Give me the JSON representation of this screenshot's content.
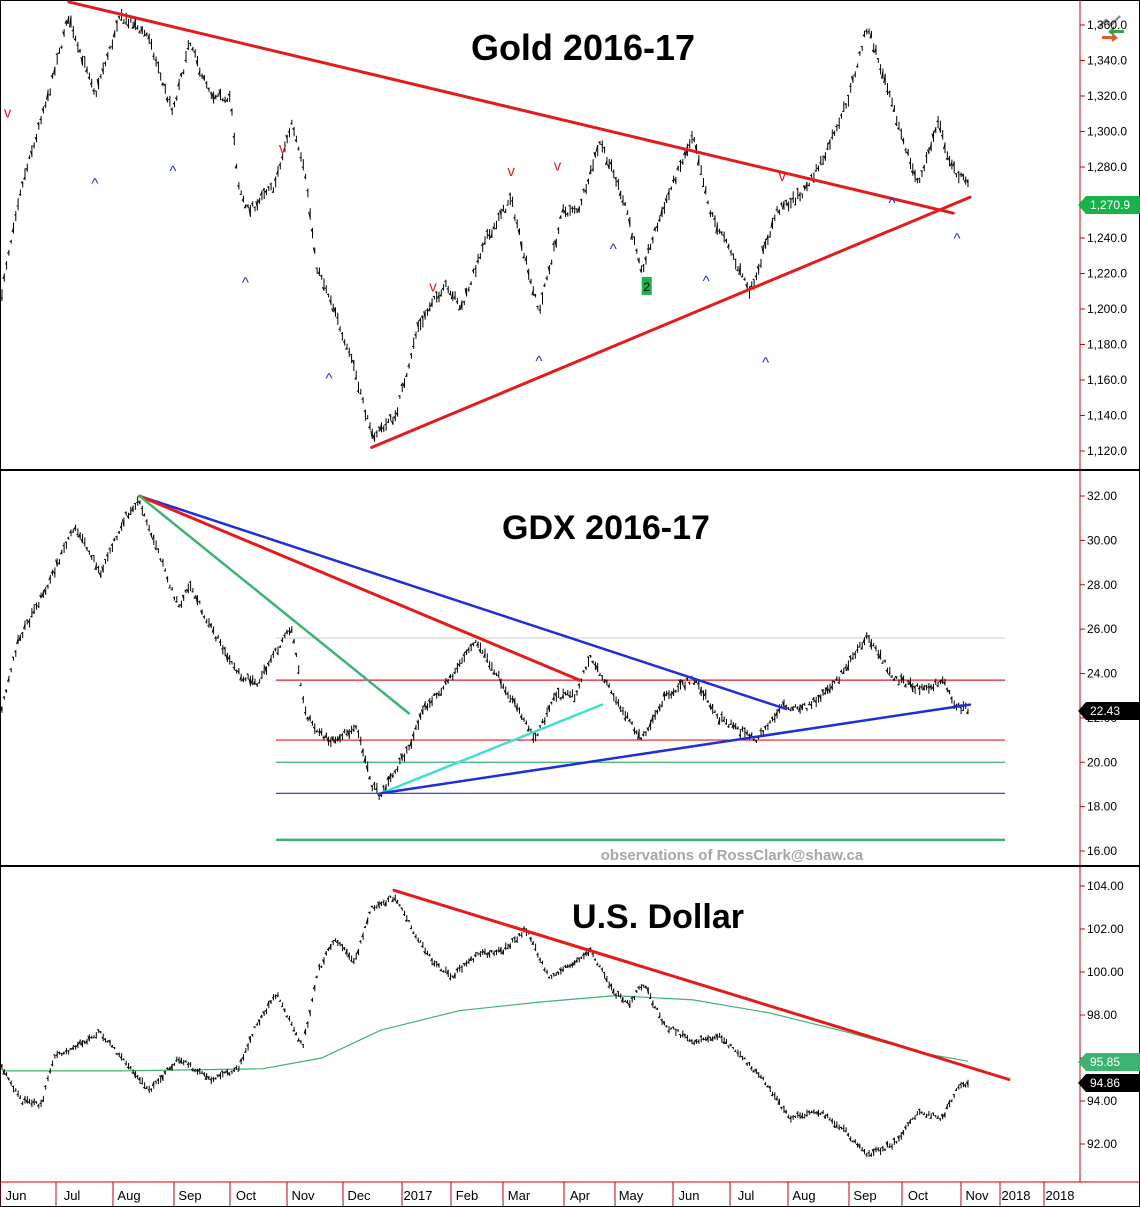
{
  "app_icon": "chart-toolbar-icon",
  "colors": {
    "axis": "#cc0000",
    "bars": "#000000",
    "red_line": "#e41b1b",
    "blue_line": "#1f2fd6",
    "green_line": "#3cb371",
    "cyan_line": "#40e0d0",
    "grey_line": "#c8c8c8",
    "ma_line": "#3cb371",
    "badge_green": "#18b24a",
    "badge_black": "#000000",
    "marker_red": "#e41b1b",
    "marker_blue": "#1f2fd6"
  },
  "x_axis": {
    "labels": [
      "Jun",
      "Jul",
      "Aug",
      "Sep",
      "Oct",
      "Nov",
      "Dec",
      "2017",
      "Feb",
      "Mar",
      "Apr",
      "May",
      "Jun",
      "Jul",
      "Aug",
      "Sep",
      "Oct",
      "Nov",
      "2018",
      "2018"
    ]
  },
  "watermark": "observations of RossClark@shaw.ca",
  "chart_data": [
    {
      "type": "line",
      "title": "Gold 2016-17",
      "ylim": [
        1110,
        1375
      ],
      "yticks": [
        "1,120.0",
        "1,140.0",
        "1,160.0",
        "1,180.0",
        "1,200.0",
        "1,220.0",
        "1,240.0",
        "1,260.0",
        "1,280.0",
        "1,300.0",
        "1,320.0",
        "1,340.0",
        "1,360.0"
      ],
      "last_value_label": "1,270.9",
      "price_path": [
        [
          "2016-05-30",
          1210
        ],
        [
          "2016-06-10",
          1270
        ],
        [
          "2016-06-24",
          1320
        ],
        [
          "2016-07-05",
          1365
        ],
        [
          "2016-07-19",
          1320
        ],
        [
          "2016-08-02",
          1365
        ],
        [
          "2016-08-16",
          1355
        ],
        [
          "2016-08-30",
          1310
        ],
        [
          "2016-09-08",
          1350
        ],
        [
          "2016-09-20",
          1318
        ],
        [
          "2016-09-30",
          1320
        ],
        [
          "2016-10-04",
          1270
        ],
        [
          "2016-10-10",
          1255
        ],
        [
          "2016-10-24",
          1270
        ],
        [
          "2016-11-02",
          1305
        ],
        [
          "2016-11-09",
          1280
        ],
        [
          "2016-11-15",
          1225
        ],
        [
          "2016-11-28",
          1190
        ],
        [
          "2016-12-05",
          1170
        ],
        [
          "2016-12-15",
          1128
        ],
        [
          "2016-12-28",
          1140
        ],
        [
          "2017-01-09",
          1190
        ],
        [
          "2017-01-24",
          1215
        ],
        [
          "2017-02-01",
          1200
        ],
        [
          "2017-02-15",
          1240
        ],
        [
          "2017-02-28",
          1262
        ],
        [
          "2017-03-15",
          1198
        ],
        [
          "2017-03-28",
          1255
        ],
        [
          "2017-04-05",
          1255
        ],
        [
          "2017-04-17",
          1295
        ],
        [
          "2017-05-01",
          1258
        ],
        [
          "2017-05-09",
          1220
        ],
        [
          "2017-05-22",
          1260
        ],
        [
          "2017-06-06",
          1297
        ],
        [
          "2017-06-15",
          1255
        ],
        [
          "2017-07-07",
          1210
        ],
        [
          "2017-07-21",
          1255
        ],
        [
          "2017-08-04",
          1265
        ],
        [
          "2017-08-15",
          1285
        ],
        [
          "2017-08-29",
          1320
        ],
        [
          "2017-09-08",
          1360
        ],
        [
          "2017-09-18",
          1325
        ],
        [
          "2017-10-05",
          1270
        ],
        [
          "2017-10-16",
          1305
        ],
        [
          "2017-10-23",
          1280
        ],
        [
          "2017-11-01",
          1270
        ]
      ],
      "trendlines": [
        {
          "name": "resistance",
          "color": "red",
          "from": [
            "2016-07-05",
            1373
          ],
          "to": [
            "2017-10-24",
            1254
          ]
        },
        {
          "name": "support",
          "color": "red",
          "from": [
            "2016-12-15",
            1122
          ],
          "to": [
            "2017-11-02",
            1263
          ]
        }
      ],
      "markers": [
        {
          "text": "v",
          "color": "red",
          "at": [
            "2016-06-02",
            1308
          ]
        },
        {
          "text": "v",
          "color": "red",
          "at": [
            "2016-10-28",
            1288
          ]
        },
        {
          "text": "v",
          "color": "red",
          "at": [
            "2017-01-17",
            1210
          ]
        },
        {
          "text": "v",
          "color": "red",
          "at": [
            "2017-02-28",
            1275
          ]
        },
        {
          "text": "v",
          "color": "red",
          "at": [
            "2017-03-25",
            1278
          ]
        },
        {
          "text": "v",
          "color": "red",
          "at": [
            "2017-07-24",
            1272
          ]
        },
        {
          "text": "v",
          "color": "red",
          "at": [
            "2017-09-05",
            1383
          ]
        },
        {
          "text": "^",
          "color": "blue",
          "at": [
            "2016-07-19",
            1268
          ]
        },
        {
          "text": "^",
          "color": "blue",
          "at": [
            "2016-08-30",
            1275
          ]
        },
        {
          "text": "^",
          "color": "blue",
          "at": [
            "2016-10-08",
            1212
          ]
        },
        {
          "text": "^",
          "color": "blue",
          "at": [
            "2016-11-22",
            1158
          ]
        },
        {
          "text": "^",
          "color": "blue",
          "at": [
            "2017-03-15",
            1168
          ]
        },
        {
          "text": "^",
          "color": "blue",
          "at": [
            "2017-04-24",
            1231
          ]
        },
        {
          "text": "^",
          "color": "blue",
          "at": [
            "2017-06-13",
            1213
          ]
        },
        {
          "text": "^",
          "color": "blue",
          "at": [
            "2017-07-15",
            1167
          ]
        },
        {
          "text": "^",
          "color": "blue",
          "at": [
            "2017-09-21",
            1257
          ]
        },
        {
          "text": "^",
          "color": "blue",
          "at": [
            "2017-10-26",
            1237
          ]
        }
      ],
      "badge": {
        "text": "2",
        "at": [
          "2017-05-12",
          1213
        ]
      }
    },
    {
      "type": "line",
      "title": "GDX 2016-17",
      "ylim": [
        15.3,
        32.6
      ],
      "yticks": [
        "16.00",
        "18.00",
        "20.00",
        "22.00",
        "24.00",
        "26.00",
        "28.00",
        "30.00",
        "32.00"
      ],
      "last_value_label": "22.43",
      "price_path": [
        [
          "2016-05-30",
          22.5
        ],
        [
          "2016-06-08",
          25.5
        ],
        [
          "2016-06-24",
          28.0
        ],
        [
          "2016-07-08",
          30.7
        ],
        [
          "2016-07-22",
          28.5
        ],
        [
          "2016-08-04",
          31.0
        ],
        [
          "2016-08-12",
          31.8
        ],
        [
          "2016-08-24",
          29.0
        ],
        [
          "2016-09-02",
          27.0
        ],
        [
          "2016-09-08",
          28.0
        ],
        [
          "2016-09-20",
          26.0
        ],
        [
          "2016-10-04",
          24.0
        ],
        [
          "2016-10-14",
          23.5
        ],
        [
          "2016-10-28",
          25.5
        ],
        [
          "2016-11-02",
          26.0
        ],
        [
          "2016-11-10",
          22.0
        ],
        [
          "2016-11-22",
          21.0
        ],
        [
          "2016-12-07",
          21.5
        ],
        [
          "2016-12-15",
          19.0
        ],
        [
          "2016-12-20",
          18.5
        ],
        [
          "2017-01-03",
          20.5
        ],
        [
          "2017-01-13",
          22.5
        ],
        [
          "2017-01-24",
          23.5
        ],
        [
          "2017-02-09",
          25.5
        ],
        [
          "2017-02-24",
          23.5
        ],
        [
          "2017-03-13",
          21.0
        ],
        [
          "2017-03-24",
          23.0
        ],
        [
          "2017-04-04",
          23.0
        ],
        [
          "2017-04-12",
          24.8
        ],
        [
          "2017-04-24",
          23.0
        ],
        [
          "2017-05-09",
          21.0
        ],
        [
          "2017-05-22",
          23.0
        ],
        [
          "2017-06-06",
          23.8
        ],
        [
          "2017-06-20",
          22.0
        ],
        [
          "2017-07-10",
          21.0
        ],
        [
          "2017-07-24",
          22.5
        ],
        [
          "2017-08-07",
          22.5
        ],
        [
          "2017-08-21",
          23.5
        ],
        [
          "2017-09-08",
          25.7
        ],
        [
          "2017-09-22",
          23.8
        ],
        [
          "2017-10-09",
          23.2
        ],
        [
          "2017-10-18",
          23.8
        ],
        [
          "2017-10-25",
          22.5
        ],
        [
          "2017-11-01",
          22.43
        ]
      ],
      "trendlines": [
        {
          "name": "blue-resistance",
          "color": "blue",
          "from": [
            "2016-08-12",
            32.0
          ],
          "to": [
            "2017-07-26",
            22.4
          ]
        },
        {
          "name": "red-resistance",
          "color": "red",
          "from": [
            "2016-08-12",
            32.0
          ],
          "to": [
            "2017-04-06",
            23.7
          ]
        },
        {
          "name": "green-resistance",
          "color": "green",
          "from": [
            "2016-08-12",
            32.0
          ],
          "to": [
            "2017-01-04",
            22.2
          ]
        },
        {
          "name": "cyan-support",
          "color": "cyan",
          "from": [
            "2016-12-20",
            18.6
          ],
          "to": [
            "2017-04-18",
            22.6
          ]
        },
        {
          "name": "blue-support",
          "color": "blue",
          "from": [
            "2016-12-20",
            18.6
          ],
          "to": [
            "2017-11-02",
            22.6
          ]
        }
      ],
      "levels": [
        {
          "value": 25.6,
          "color": "grey"
        },
        {
          "value": 23.7,
          "color": "red"
        },
        {
          "value": 21.0,
          "color": "red"
        },
        {
          "value": 20.0,
          "color": "green"
        },
        {
          "value": 18.6,
          "color": "blue"
        },
        {
          "value": 16.5,
          "color": "green"
        }
      ]
    },
    {
      "type": "line",
      "title": "U.S. Dollar",
      "ylim": [
        90.3,
        104.5
      ],
      "yticks": [
        "92.00",
        "94.00",
        "96.00",
        "98.00",
        "100.00",
        "102.00",
        "104.00"
      ],
      "last_value_label": "94.86",
      "ma_value_label": "95.85",
      "price_path": [
        [
          "2016-05-30",
          95.5
        ],
        [
          "2016-06-10",
          94.0
        ],
        [
          "2016-06-20",
          93.8
        ],
        [
          "2016-06-27",
          96.0
        ],
        [
          "2016-07-08",
          96.5
        ],
        [
          "2016-07-22",
          97.2
        ],
        [
          "2016-08-05",
          95.7
        ],
        [
          "2016-08-18",
          94.5
        ],
        [
          "2016-09-02",
          96.0
        ],
        [
          "2016-09-20",
          95.0
        ],
        [
          "2016-10-04",
          95.5
        ],
        [
          "2016-10-14",
          97.5
        ],
        [
          "2016-10-25",
          99.0
        ],
        [
          "2016-11-08",
          96.5
        ],
        [
          "2016-11-16",
          100.0
        ],
        [
          "2016-11-25",
          101.5
        ],
        [
          "2016-12-06",
          100.5
        ],
        [
          "2016-12-15",
          103.0
        ],
        [
          "2016-12-28",
          103.5
        ],
        [
          "2017-01-06",
          102.0
        ],
        [
          "2017-01-17",
          100.5
        ],
        [
          "2017-01-27",
          99.8
        ],
        [
          "2017-02-10",
          100.8
        ],
        [
          "2017-02-24",
          101.0
        ],
        [
          "2017-03-08",
          102.0
        ],
        [
          "2017-03-21",
          99.7
        ],
        [
          "2017-04-04",
          100.5
        ],
        [
          "2017-04-12",
          101.0
        ],
        [
          "2017-04-25",
          99.0
        ],
        [
          "2017-05-03",
          98.5
        ],
        [
          "2017-05-10",
          99.5
        ],
        [
          "2017-05-22",
          97.5
        ],
        [
          "2017-06-06",
          96.8
        ],
        [
          "2017-06-20",
          97.0
        ],
        [
          "2017-07-03",
          96.0
        ],
        [
          "2017-07-14",
          95.0
        ],
        [
          "2017-07-28",
          93.2
        ],
        [
          "2017-08-14",
          93.5
        ],
        [
          "2017-08-28",
          92.5
        ],
        [
          "2017-09-08",
          91.5
        ],
        [
          "2017-09-22",
          92.0
        ],
        [
          "2017-10-06",
          93.5
        ],
        [
          "2017-10-18",
          93.2
        ],
        [
          "2017-10-26",
          94.5
        ],
        [
          "2017-11-01",
          94.86
        ]
      ],
      "moving_average": [
        [
          "2016-05-30",
          95.4
        ],
        [
          "2016-08-01",
          95.4
        ],
        [
          "2016-10-17",
          95.5
        ],
        [
          "2016-11-18",
          96.0
        ],
        [
          "2016-12-20",
          97.3
        ],
        [
          "2017-01-31",
          98.2
        ],
        [
          "2017-03-15",
          98.6
        ],
        [
          "2017-04-25",
          98.9
        ],
        [
          "2017-06-06",
          98.7
        ],
        [
          "2017-07-17",
          98.1
        ],
        [
          "2017-08-28",
          97.2
        ],
        [
          "2017-10-09",
          96.2
        ],
        [
          "2017-11-01",
          95.85
        ]
      ],
      "trendlines": [
        {
          "name": "resistance",
          "color": "red",
          "from": [
            "2016-12-27",
            103.8
          ],
          "to": [
            "2017-11-23",
            95.0
          ]
        }
      ]
    }
  ]
}
